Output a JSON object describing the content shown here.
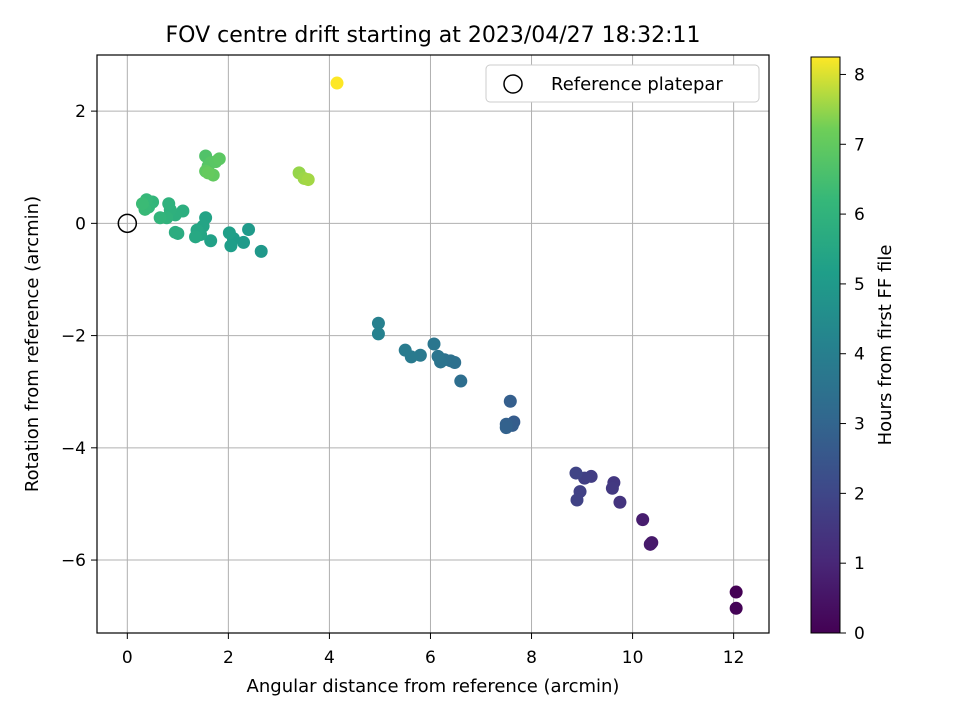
{
  "chart_data": {
    "type": "scatter",
    "title": "FOV centre drift starting at 2023/04/27 18:32:11",
    "xlabel": "Angular distance from reference (arcmin)",
    "ylabel": "Rotation from reference (arcmin)",
    "xlim": [
      -0.6,
      12.7
    ],
    "ylim": [
      -7.3,
      3.0
    ],
    "xticks": [
      0,
      2,
      4,
      6,
      8,
      10,
      12
    ],
    "xtick_labels": [
      "0",
      "2",
      "4",
      "6",
      "8",
      "10",
      "12"
    ],
    "yticks": [
      2,
      0,
      -2,
      -4,
      -6
    ],
    "ytick_labels": [
      "2",
      "0",
      "−2",
      "−4",
      "−6"
    ],
    "grid": true,
    "legend": {
      "placement": "top-right",
      "entries": [
        {
          "label": "Reference platepar",
          "marker": "open-circle"
        }
      ]
    },
    "reference_point": {
      "x": 0,
      "y": 0
    },
    "colorbar": {
      "label": "Hours from first FF file",
      "range": [
        0,
        8.25
      ],
      "ticks": [
        0,
        1,
        2,
        3,
        4,
        5,
        6,
        7,
        8
      ],
      "tick_labels": [
        "0",
        "1",
        "2",
        "3",
        "4",
        "5",
        "6",
        "7",
        "8"
      ],
      "colormap": "viridis"
    },
    "series": [
      {
        "points": [
          {
            "x": 12.05,
            "y": -6.57,
            "c": 0.0
          },
          {
            "x": 12.05,
            "y": -6.86,
            "c": 0.05
          },
          {
            "x": 10.38,
            "y": -5.69,
            "c": 0.6
          },
          {
            "x": 10.35,
            "y": -5.72,
            "c": 0.65
          },
          {
            "x": 10.2,
            "y": -5.28,
            "c": 0.75
          },
          {
            "x": 9.75,
            "y": -4.97,
            "c": 1.4
          },
          {
            "x": 9.63,
            "y": -4.62,
            "c": 1.5
          },
          {
            "x": 9.6,
            "y": -4.72,
            "c": 1.55
          },
          {
            "x": 9.18,
            "y": -4.51,
            "c": 1.7
          },
          {
            "x": 9.05,
            "y": -4.54,
            "c": 1.75
          },
          {
            "x": 8.96,
            "y": -4.78,
            "c": 1.8
          },
          {
            "x": 8.9,
            "y": -4.93,
            "c": 1.85
          },
          {
            "x": 8.88,
            "y": -4.45,
            "c": 1.9
          },
          {
            "x": 7.65,
            "y": -3.54,
            "c": 2.7
          },
          {
            "x": 7.62,
            "y": -3.6,
            "c": 2.75
          },
          {
            "x": 7.58,
            "y": -3.17,
            "c": 2.8
          },
          {
            "x": 7.5,
            "y": -3.58,
            "c": 2.85
          },
          {
            "x": 7.5,
            "y": -3.64,
            "c": 2.9
          },
          {
            "x": 6.6,
            "y": -2.81,
            "c": 3.35
          },
          {
            "x": 6.48,
            "y": -2.48,
            "c": 3.4
          },
          {
            "x": 6.4,
            "y": -2.45,
            "c": 3.45
          },
          {
            "x": 6.28,
            "y": -2.43,
            "c": 3.5
          },
          {
            "x": 6.2,
            "y": -2.47,
            "c": 3.55
          },
          {
            "x": 6.15,
            "y": -2.37,
            "c": 3.6
          },
          {
            "x": 6.07,
            "y": -2.15,
            "c": 3.65
          },
          {
            "x": 5.8,
            "y": -2.35,
            "c": 3.75
          },
          {
            "x": 5.62,
            "y": -2.38,
            "c": 3.8
          },
          {
            "x": 5.5,
            "y": -2.26,
            "c": 3.85
          },
          {
            "x": 4.97,
            "y": -1.78,
            "c": 4.05
          },
          {
            "x": 4.97,
            "y": -1.97,
            "c": 4.1
          },
          {
            "x": 2.65,
            "y": -0.5,
            "c": 4.95
          },
          {
            "x": 2.4,
            "y": -0.11,
            "c": 5.0
          },
          {
            "x": 2.3,
            "y": -0.34,
            "c": 5.05
          },
          {
            "x": 2.1,
            "y": -0.27,
            "c": 5.1
          },
          {
            "x": 2.05,
            "y": -0.4,
            "c": 5.15
          },
          {
            "x": 2.02,
            "y": -0.17,
            "c": 5.2
          },
          {
            "x": 1.65,
            "y": -0.31,
            "c": 5.3
          },
          {
            "x": 1.55,
            "y": 0.1,
            "c": 5.35
          },
          {
            "x": 1.5,
            "y": -0.05,
            "c": 5.4
          },
          {
            "x": 1.45,
            "y": -0.2,
            "c": 5.45
          },
          {
            "x": 1.38,
            "y": -0.12,
            "c": 5.5
          },
          {
            "x": 1.35,
            "y": -0.24,
            "c": 5.55
          },
          {
            "x": 1.0,
            "y": -0.18,
            "c": 5.7
          },
          {
            "x": 0.95,
            "y": -0.16,
            "c": 5.75
          },
          {
            "x": 1.1,
            "y": 0.22,
            "c": 5.8
          },
          {
            "x": 0.95,
            "y": 0.15,
            "c": 5.85
          },
          {
            "x": 0.85,
            "y": 0.24,
            "c": 5.9
          },
          {
            "x": 0.82,
            "y": 0.35,
            "c": 5.95
          },
          {
            "x": 0.78,
            "y": 0.1,
            "c": 6.0
          },
          {
            "x": 0.65,
            "y": 0.1,
            "c": 6.05
          },
          {
            "x": 0.5,
            "y": 0.38,
            "c": 6.1
          },
          {
            "x": 0.42,
            "y": 0.29,
            "c": 6.15
          },
          {
            "x": 0.38,
            "y": 0.42,
            "c": 6.2
          },
          {
            "x": 0.35,
            "y": 0.25,
            "c": 6.25
          },
          {
            "x": 0.3,
            "y": 0.35,
            "c": 6.3
          },
          {
            "x": 1.55,
            "y": 1.2,
            "c": 6.7
          },
          {
            "x": 1.6,
            "y": 1.02,
            "c": 6.75
          },
          {
            "x": 1.65,
            "y": 1.08,
            "c": 6.8
          },
          {
            "x": 1.75,
            "y": 1.1,
            "c": 6.85
          },
          {
            "x": 1.82,
            "y": 1.15,
            "c": 6.9
          },
          {
            "x": 1.55,
            "y": 0.93,
            "c": 6.95
          },
          {
            "x": 1.7,
            "y": 0.86,
            "c": 7.0
          },
          {
            "x": 1.6,
            "y": 0.9,
            "c": 7.05
          },
          {
            "x": 3.4,
            "y": 0.9,
            "c": 7.5
          },
          {
            "x": 3.5,
            "y": 0.8,
            "c": 7.55
          },
          {
            "x": 3.58,
            "y": 0.78,
            "c": 7.6
          },
          {
            "x": 4.15,
            "y": 2.5,
            "c": 8.25
          }
        ]
      }
    ]
  }
}
